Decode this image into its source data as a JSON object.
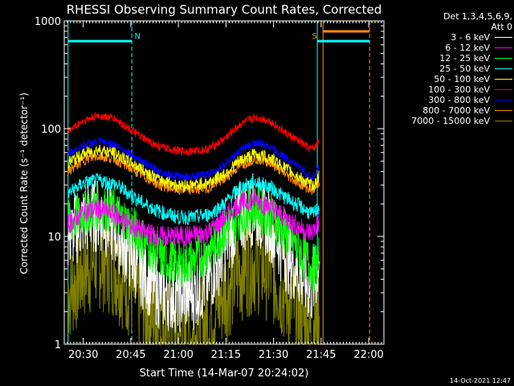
{
  "chart_data": {
    "type": "line",
    "title": "RHESSI Observing Summary Count Rates, Corrected",
    "xlabel": "Start Time (14-Mar-07 20:24:02)",
    "ylabel": "Corrected Count Rate (s⁻¹ detector⁻¹)",
    "ylog": true,
    "ylim": [
      1,
      1000
    ],
    "xlim": [
      20.4,
      22.08
    ],
    "x_ticks": [
      {
        "value": 20.5,
        "label": "20:30"
      },
      {
        "value": 20.75,
        "label": "20:45"
      },
      {
        "value": 21.0,
        "label": "21:00"
      },
      {
        "value": 21.25,
        "label": "21:15"
      },
      {
        "value": 21.5,
        "label": "21:30"
      },
      {
        "value": 21.75,
        "label": "21:45"
      },
      {
        "value": 22.0,
        "label": "22:00"
      }
    ],
    "y_ticks": [
      {
        "value": 1,
        "label": "1"
      },
      {
        "value": 10,
        "label": "10"
      },
      {
        "value": 100,
        "label": "100"
      },
      {
        "value": 1000,
        "label": "1000"
      }
    ],
    "x": [
      20.42,
      20.5,
      20.58,
      20.66,
      20.74,
      20.82,
      20.9,
      21.0,
      21.08,
      21.16,
      21.24,
      21.32,
      21.4,
      21.48,
      21.56,
      21.64,
      21.68,
      21.7,
      21.72,
      21.74
    ],
    "series": [
      {
        "name": "3 - 6 keV",
        "color": "#ffffff",
        "noise": 0.35,
        "values": [
          10,
          14,
          16,
          12,
          7,
          4.5,
          3,
          2.8,
          3,
          4,
          8,
          15,
          18,
          13,
          7,
          4.5,
          3.5,
          3.2,
          4,
          7
        ]
      },
      {
        "name": "6 - 12 keV",
        "color": "#ff00ff",
        "noise": 0.1,
        "values": [
          13,
          17,
          18,
          16,
          13,
          11,
          10,
          10,
          10.2,
          11,
          15,
          20,
          22,
          19,
          15,
          12,
          11,
          11,
          12,
          14
        ]
      },
      {
        "name": "12 - 25 keV",
        "color": "#00ff00",
        "noise": 0.22,
        "values": [
          13,
          17,
          19,
          17,
          13,
          9,
          6.5,
          5.5,
          6,
          7.5,
          11,
          16,
          19,
          16,
          11,
          7.5,
          6,
          5,
          5.5,
          6
        ]
      },
      {
        "name": "25 - 50 keV",
        "color": "#00ffff",
        "noise": 0.07,
        "values": [
          25,
          31,
          33,
          31,
          25,
          20,
          17,
          15,
          15,
          16,
          20,
          28,
          32,
          29,
          23,
          19,
          17,
          16,
          17,
          19
        ]
      },
      {
        "name": "50 - 100 keV",
        "color": "#ffff00",
        "noise": 0.06,
        "values": [
          48,
          58,
          64,
          60,
          50,
          41,
          34,
          30,
          30,
          32,
          38,
          50,
          58,
          54,
          43,
          35,
          31,
          30,
          31,
          36
        ]
      },
      {
        "name": "100 - 300 keV",
        "color": "#ff0000",
        "noise": 0.04,
        "values": [
          95,
          118,
          132,
          125,
          100,
          80,
          68,
          62,
          62,
          65,
          80,
          108,
          128,
          118,
          92,
          75,
          67,
          65,
          68,
          80
        ]
      },
      {
        "name": "300 - 800 keV",
        "color": "#0000ff",
        "noise": 0.04,
        "values": [
          58,
          70,
          76,
          72,
          60,
          48,
          40,
          36,
          36,
          38,
          46,
          62,
          74,
          69,
          54,
          44,
          38,
          36,
          38,
          45
        ]
      },
      {
        "name": "800 - 7000 keV",
        "color": "#ff8c00",
        "noise": 0.05,
        "values": [
          40,
          51,
          56,
          53,
          44,
          36,
          30,
          27,
          27,
          28.5,
          34,
          45,
          53,
          49,
          38,
          31,
          28,
          27,
          28,
          32
        ]
      },
      {
        "name": "7000 - 15000 keV",
        "color": "#808000",
        "noise": 0.5,
        "values": [
          3,
          5,
          6.5,
          5.5,
          3.5,
          2.2,
          1.5,
          1.1,
          1.2,
          1.7,
          3,
          5,
          6,
          5,
          3,
          1.8,
          1.3,
          1.2,
          1.5,
          2.2
        ]
      }
    ],
    "annotations": [
      {
        "text": "N",
        "x": 20.785,
        "color": "#00ffff"
      },
      {
        "text": "S",
        "x": 21.715,
        "color": "#ff8c00"
      }
    ],
    "markers": [
      {
        "x": 20.42,
        "color": "#00ffff",
        "style": "solid"
      },
      {
        "x": 20.755,
        "color": "#00ffff",
        "style": "dashed"
      },
      {
        "x": 21.73,
        "color": "#00ffff",
        "style": "solid"
      },
      {
        "x": 21.76,
        "color": "#ff8c00",
        "style": "solid"
      },
      {
        "x": 22.005,
        "color": "#ff8c00",
        "style": "dashed"
      }
    ],
    "bars": [
      {
        "x0": 20.42,
        "x1": 20.755,
        "y": 650,
        "color": "#00ffff"
      },
      {
        "x0": 21.73,
        "x1": 22.005,
        "y": 650,
        "color": "#00ffff"
      },
      {
        "x0": 21.76,
        "x1": 22.005,
        "y": 800,
        "color": "#ff8c00"
      }
    ]
  },
  "legend": {
    "header_line1": "Det 1,3,4,5,6,9,",
    "header_line2": "Att 0"
  },
  "timestamp": "14-Oct-2021 12:47"
}
